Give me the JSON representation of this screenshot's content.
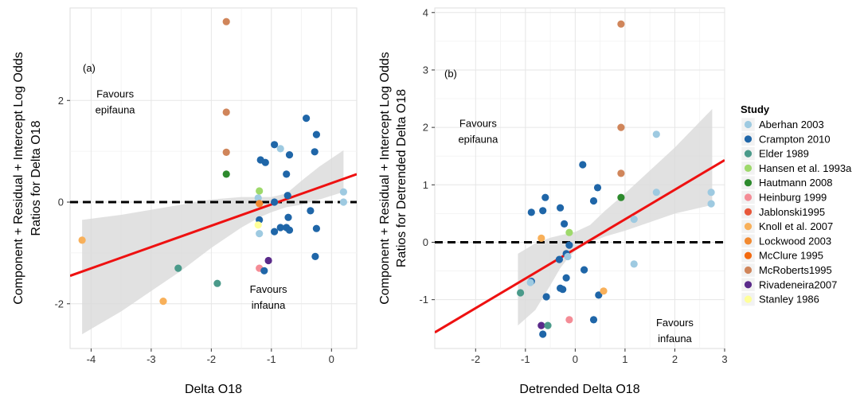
{
  "colors": {
    "Aberhan 2003": "#9ecae1",
    "Crampton 2010": "#1f66a8",
    "Elder 1989": "#4a9a8a",
    "Hansen et al. 1993a": "#9ed96b",
    "Hautmann 2008": "#2d8a2d",
    "Heinburg 1999": "#f48c96",
    "Jablonski1995": "#e8573a",
    "Knoll et al. 2007": "#f8b05a",
    "Lockwood 2003": "#f28a30",
    "McClure 1995": "#f36a10",
    "McRoberts1995": "#d0855a",
    "Rivadeneira2007": "#5a2a8a",
    "Stanley 1986": "#ffff99",
    "fit_line": "#ee1111",
    "ci_band": "#d9d9d9",
    "ref_line": "#000000"
  },
  "legend": {
    "title": "Study",
    "items": [
      "Aberhan 2003",
      "Crampton 2010",
      "Elder 1989",
      "Hansen et al. 1993a",
      "Hautmann 2008",
      "Heinburg 1999",
      "Jablonski1995",
      "Knoll et al. 2007",
      "Lockwood 2003",
      "McClure 1995",
      "McRoberts1995",
      "Rivadeneira2007",
      "Stanley 1986"
    ]
  },
  "chart_data": [
    {
      "type": "scatter",
      "panel_label": "(a)",
      "xlabel": "Delta O18",
      "ylabel_line1": "Component + Residual + Intercept Log Odds",
      "ylabel_line2": "Ratios for Delta O18",
      "xlim": [
        -4.35,
        0.42
      ],
      "ylim": [
        -2.88,
        3.82
      ],
      "xticks": [
        -4,
        -3,
        -2,
        -1,
        0
      ],
      "yticks": [
        -2,
        0,
        2
      ],
      "annotations": [
        {
          "line1": "Favours",
          "line2": "epifauna",
          "x": -3.6,
          "y": 2.0
        },
        {
          "line1": "Favours",
          "line2": "infauna",
          "x": -1.05,
          "y": -1.85
        }
      ],
      "fit": {
        "x0": -4.35,
        "y0": -1.45,
        "x1": 0.42,
        "y1": 0.55
      },
      "ci": {
        "x": [
          -4.15,
          -3.5,
          -3.0,
          -2.5,
          -2.0,
          -1.5,
          -1.2,
          -1.0,
          -0.75,
          -0.5,
          -0.2,
          0.2
        ],
        "upper": [
          -0.35,
          -0.25,
          -0.15,
          -0.05,
          0.05,
          0.1,
          0.1,
          0.1,
          0.17,
          0.42,
          0.7,
          1.02
        ],
        "lower": [
          -2.6,
          -2.15,
          -1.75,
          -1.35,
          -0.9,
          -0.5,
          -0.3,
          -0.2,
          -0.1,
          -0.05,
          0.05,
          0.2
        ]
      },
      "points": [
        {
          "study": "McRoberts1995",
          "x": -1.75,
          "y": 3.55
        },
        {
          "study": "McRoberts1995",
          "x": -1.75,
          "y": 1.77
        },
        {
          "study": "McRoberts1995",
          "x": -1.75,
          "y": 0.98
        },
        {
          "study": "Hautmann 2008",
          "x": -1.75,
          "y": 0.55
        },
        {
          "study": "Crampton 2010",
          "x": -0.42,
          "y": 1.65
        },
        {
          "study": "Crampton 2010",
          "x": -0.25,
          "y": 1.33
        },
        {
          "study": "Crampton 2010",
          "x": -0.95,
          "y": 1.13
        },
        {
          "study": "Aberhan 2003",
          "x": -0.85,
          "y": 1.05
        },
        {
          "study": "Crampton 2010",
          "x": -0.7,
          "y": 0.93
        },
        {
          "study": "Crampton 2010",
          "x": -0.28,
          "y": 0.99
        },
        {
          "study": "Crampton 2010",
          "x": -1.18,
          "y": 0.83
        },
        {
          "study": "Crampton 2010",
          "x": -1.1,
          "y": 0.78
        },
        {
          "study": "Crampton 2010",
          "x": -0.75,
          "y": 0.55
        },
        {
          "study": "Hansen et al. 1993a",
          "x": -1.2,
          "y": 0.22
        },
        {
          "study": "Crampton 2010",
          "x": -0.73,
          "y": 0.13
        },
        {
          "study": "Aberhan 2003",
          "x": 0.2,
          "y": 0.2
        },
        {
          "study": "Aberhan 2003",
          "x": 0.2,
          "y": 0.0
        },
        {
          "study": "Aberhan 2003",
          "x": -1.22,
          "y": 0.08
        },
        {
          "study": "Lockwood 2003",
          "x": -1.2,
          "y": -0.03
        },
        {
          "study": "Crampton 2010",
          "x": -0.95,
          "y": 0.0
        },
        {
          "study": "Crampton 2010",
          "x": -0.35,
          "y": -0.17
        },
        {
          "study": "Crampton 2010",
          "x": -0.72,
          "y": -0.3
        },
        {
          "study": "Crampton 2010",
          "x": -1.2,
          "y": -0.35
        },
        {
          "study": "Stanley 1986",
          "x": -1.22,
          "y": -0.45
        },
        {
          "study": "Crampton 2010",
          "x": -0.75,
          "y": -0.5
        },
        {
          "study": "Crampton 2010",
          "x": -0.85,
          "y": -0.5
        },
        {
          "study": "Crampton 2010",
          "x": -0.25,
          "y": -0.52
        },
        {
          "study": "Crampton 2010",
          "x": -0.7,
          "y": -0.55
        },
        {
          "study": "Crampton 2010",
          "x": -0.95,
          "y": -0.58
        },
        {
          "study": "Aberhan 2003",
          "x": -1.2,
          "y": -0.62
        },
        {
          "study": "Crampton 2010",
          "x": -0.27,
          "y": -1.07
        },
        {
          "study": "Rivadeneira2007",
          "x": -1.05,
          "y": -1.15
        },
        {
          "study": "Heinburg 1999",
          "x": -1.2,
          "y": -1.3
        },
        {
          "study": "Crampton 2010",
          "x": -1.12,
          "y": -1.35
        },
        {
          "study": "Elder 1989",
          "x": -2.55,
          "y": -1.3
        },
        {
          "study": "Elder 1989",
          "x": -1.9,
          "y": -1.6
        },
        {
          "study": "Knoll et al. 2007",
          "x": -4.15,
          "y": -0.75
        },
        {
          "study": "Knoll et al. 2007",
          "x": -2.8,
          "y": -1.95
        }
      ]
    },
    {
      "type": "scatter",
      "panel_label": "(b)",
      "xlabel": "Detrended Delta O18",
      "ylabel_line1": "Component + Residual + Intercept Log Odds",
      "ylabel_line2": "Ratios for Detrended Delta O18",
      "xlim": [
        -2.82,
        3.0
      ],
      "ylim": [
        -1.85,
        4.08
      ],
      "xticks": [
        -2,
        -1,
        0,
        1,
        2,
        3
      ],
      "yticks": [
        -1,
        0,
        1,
        2,
        3,
        4
      ],
      "annotations": [
        {
          "line1": "Favours",
          "line2": "epifauna",
          "x": -1.95,
          "y": 1.95
        },
        {
          "line1": "Favours",
          "line2": "infauna",
          "x": 2.0,
          "y": -1.52
        }
      ],
      "fit": {
        "x0": -2.82,
        "y0": -1.57,
        "x1": 3.0,
        "y1": 1.43
      },
      "ci": {
        "x": [
          -1.15,
          -0.8,
          -0.5,
          -0.3,
          -0.15,
          0.0,
          0.3,
          0.6,
          1.0,
          1.5,
          2.0,
          2.75
        ],
        "upper": [
          -0.2,
          -0.02,
          0.08,
          0.12,
          0.15,
          0.18,
          0.3,
          0.55,
          0.85,
          1.25,
          1.65,
          2.32
        ],
        "lower": [
          -1.45,
          -1.18,
          -0.75,
          -0.45,
          -0.28,
          -0.15,
          0.0,
          0.1,
          0.2,
          0.35,
          0.5,
          0.65
        ]
      },
      "points": [
        {
          "study": "McRoberts1995",
          "x": 0.92,
          "y": 3.8
        },
        {
          "study": "McRoberts1995",
          "x": 0.92,
          "y": 2.0
        },
        {
          "study": "McRoberts1995",
          "x": 0.92,
          "y": 1.2
        },
        {
          "study": "Hautmann 2008",
          "x": 0.92,
          "y": 0.78
        },
        {
          "study": "Aberhan 2003",
          "x": 1.63,
          "y": 1.88
        },
        {
          "study": "Aberhan 2003",
          "x": 1.63,
          "y": 0.87
        },
        {
          "study": "Aberhan 2003",
          "x": 2.73,
          "y": 0.87
        },
        {
          "study": "Aberhan 2003",
          "x": 2.73,
          "y": 0.67
        },
        {
          "study": "Aberhan 2003",
          "x": 1.18,
          "y": 0.4
        },
        {
          "study": "Aberhan 2003",
          "x": 1.18,
          "y": -0.38
        },
        {
          "study": "Crampton 2010",
          "x": 0.15,
          "y": 1.35
        },
        {
          "study": "Crampton 2010",
          "x": 0.45,
          "y": 0.95
        },
        {
          "study": "Crampton 2010",
          "x": -0.6,
          "y": 0.78
        },
        {
          "study": "Crampton 2010",
          "x": 0.37,
          "y": 0.72
        },
        {
          "study": "Crampton 2010",
          "x": -0.3,
          "y": 0.6
        },
        {
          "study": "Crampton 2010",
          "x": -0.65,
          "y": 0.55
        },
        {
          "study": "Crampton 2010",
          "x": -0.88,
          "y": 0.52
        },
        {
          "study": "Crampton 2010",
          "x": -0.22,
          "y": 0.32
        },
        {
          "study": "Hansen et al. 1993a",
          "x": -0.12,
          "y": 0.17
        },
        {
          "study": "Knoll et al. 2007",
          "x": -0.68,
          "y": 0.07
        },
        {
          "study": "Crampton 2010",
          "x": -0.12,
          "y": -0.05
        },
        {
          "study": "Crampton 2010",
          "x": -0.18,
          "y": -0.2
        },
        {
          "study": "Aberhan 2003",
          "x": -0.15,
          "y": -0.25
        },
        {
          "study": "Crampton 2010",
          "x": -0.32,
          "y": -0.3
        },
        {
          "study": "Crampton 2010",
          "x": 0.18,
          "y": -0.48
        },
        {
          "study": "Crampton 2010",
          "x": -0.18,
          "y": -0.62
        },
        {
          "study": "Crampton 2010",
          "x": -0.88,
          "y": -0.68
        },
        {
          "study": "Aberhan 2003",
          "x": -0.9,
          "y": -0.7
        },
        {
          "study": "Crampton 2010",
          "x": -0.3,
          "y": -0.8
        },
        {
          "study": "Crampton 2010",
          "x": -0.25,
          "y": -0.82
        },
        {
          "study": "Elder 1989",
          "x": -1.1,
          "y": -0.88
        },
        {
          "study": "Crampton 2010",
          "x": 0.47,
          "y": -0.92
        },
        {
          "study": "Crampton 2010",
          "x": -0.58,
          "y": -0.95
        },
        {
          "study": "Knoll et al. 2007",
          "x": 0.57,
          "y": -0.85
        },
        {
          "study": "Crampton 2010",
          "x": 0.37,
          "y": -1.35
        },
        {
          "study": "Heinburg 1999",
          "x": -0.12,
          "y": -1.35
        },
        {
          "study": "Rivadeneira2007",
          "x": -0.68,
          "y": -1.45
        },
        {
          "study": "Elder 1989",
          "x": -0.55,
          "y": -1.45
        },
        {
          "study": "Crampton 2010",
          "x": -0.65,
          "y": -1.6
        }
      ]
    }
  ]
}
